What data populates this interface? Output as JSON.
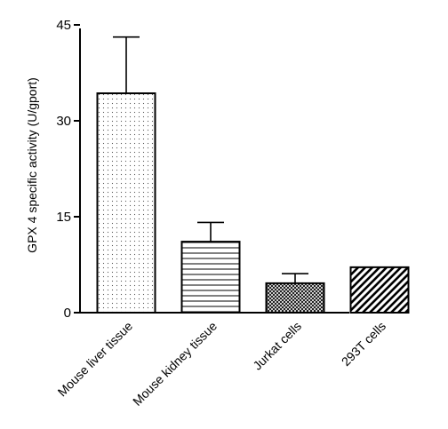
{
  "chart_data": {
    "type": "bar",
    "title": "",
    "xlabel": "",
    "ylabel": "GPX 4 specific activity (U/gport)",
    "ylim": [
      0,
      45
    ],
    "yticks": [
      0,
      15,
      30,
      45
    ],
    "grid": false,
    "categories": [
      "Mouse liver tissue",
      "Mouse kidney tissue",
      "Jurkat cells",
      "293T cells"
    ],
    "values": [
      34.3,
      11.1,
      4.6,
      7.1
    ],
    "error_upper": [
      43.1,
      14.1,
      6.1,
      7.1
    ],
    "patterns": [
      "dots",
      "horizontal-lines",
      "crosshatch",
      "diagonal-stripes"
    ]
  }
}
